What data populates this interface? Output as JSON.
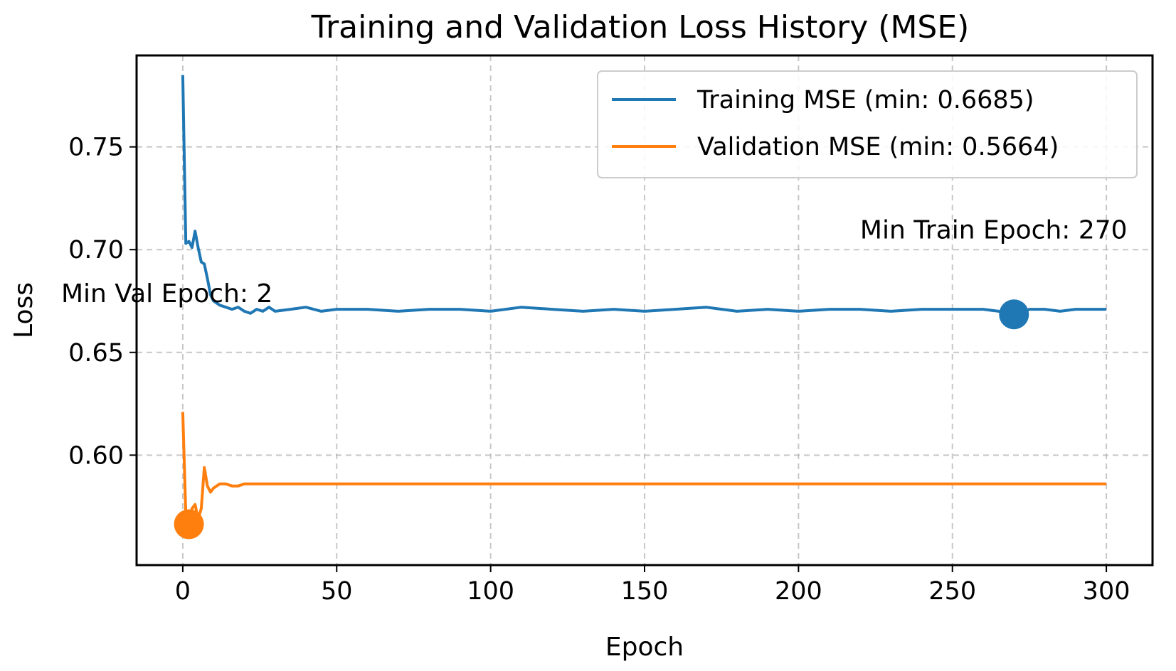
{
  "chart_data": {
    "type": "line",
    "title": "Training and Validation Loss History (MSE)",
    "xlabel": "Epoch",
    "ylabel": "Loss",
    "xlim": [
      -15,
      315
    ],
    "ylim": [
      0.5465,
      0.7945
    ],
    "xticks": [
      0,
      50,
      100,
      150,
      200,
      250,
      300
    ],
    "xtick_labels": [
      "0",
      "50",
      "100",
      "150",
      "200",
      "250",
      "300"
    ],
    "yticks": [
      0.6,
      0.65,
      0.7,
      0.75
    ],
    "ytick_labels": [
      "0.60",
      "0.65",
      "0.70",
      "0.75"
    ],
    "grid": true,
    "legend_position": "top-right",
    "series": [
      {
        "name": "Training MSE (min: 0.6685)",
        "color": "#1f77b4",
        "x": [
          0,
          1,
          2,
          3,
          4,
          5,
          6,
          7,
          8,
          9,
          10,
          12,
          14,
          16,
          18,
          20,
          22,
          24,
          26,
          28,
          30,
          35,
          40,
          45,
          50,
          60,
          70,
          80,
          90,
          100,
          110,
          120,
          130,
          140,
          150,
          160,
          170,
          180,
          190,
          200,
          210,
          220,
          230,
          240,
          250,
          260,
          265,
          270,
          275,
          280,
          285,
          290,
          295,
          300
        ],
        "y": [
          0.785,
          0.703,
          0.704,
          0.701,
          0.709,
          0.701,
          0.694,
          0.693,
          0.686,
          0.678,
          0.675,
          0.673,
          0.672,
          0.671,
          0.672,
          0.67,
          0.669,
          0.671,
          0.67,
          0.672,
          0.67,
          0.671,
          0.672,
          0.67,
          0.671,
          0.671,
          0.67,
          0.671,
          0.671,
          0.67,
          0.672,
          0.671,
          0.67,
          0.671,
          0.67,
          0.671,
          0.672,
          0.67,
          0.671,
          0.67,
          0.671,
          0.671,
          0.67,
          0.671,
          0.671,
          0.671,
          0.67,
          0.6685,
          0.671,
          0.671,
          0.67,
          0.671,
          0.671,
          0.671
        ]
      },
      {
        "name": "Validation MSE (min: 0.5664)",
        "color": "#ff7f0e",
        "x": [
          0,
          1,
          2,
          3,
          4,
          5,
          6,
          7,
          8,
          9,
          10,
          12,
          14,
          16,
          18,
          20,
          25,
          30,
          50,
          100,
          150,
          200,
          250,
          300
        ],
        "y": [
          0.621,
          0.571,
          0.5664,
          0.574,
          0.576,
          0.569,
          0.574,
          0.594,
          0.585,
          0.582,
          0.584,
          0.586,
          0.586,
          0.585,
          0.585,
          0.586,
          0.586,
          0.586,
          0.586,
          0.586,
          0.586,
          0.586,
          0.586,
          0.586
        ]
      }
    ],
    "markers": [
      {
        "series": "Training MSE (min: 0.6685)",
        "x": 270,
        "y": 0.6685,
        "color": "#1f77b4"
      },
      {
        "series": "Validation MSE (min: 0.5664)",
        "x": 2,
        "y": 0.5664,
        "color": "#ff7f0e"
      }
    ],
    "annotations": [
      {
        "text": "Min Train Epoch: 270",
        "x": 220,
        "y": 0.7055
      },
      {
        "text": "Min Val Epoch: 2",
        "x": -39.5,
        "y": 0.6745
      }
    ]
  }
}
